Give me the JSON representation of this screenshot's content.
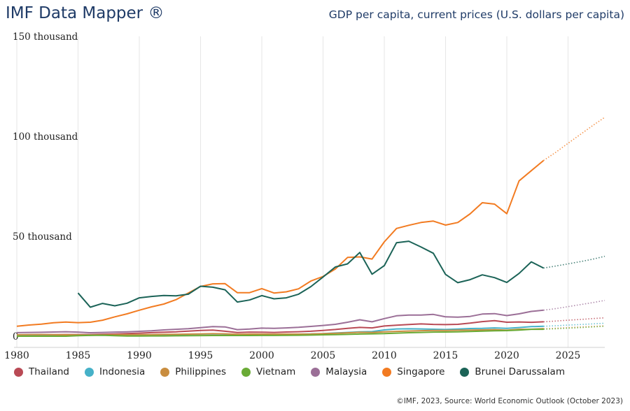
{
  "header": {
    "brand": "IMF Data Mapper ®",
    "subtitle": "GDP per capita, current prices (U.S. dollars per capita)"
  },
  "footer": {
    "credit": "©IMF, 2023, Source: World Economic Outlook (October 2023)"
  },
  "colors": {
    "Thailand": "#b94a55",
    "Indonesia": "#46b1c8",
    "Philippines": "#c98d3f",
    "Vietnam": "#6aab36",
    "Malaysia": "#9b6f97",
    "Singapore": "#f27b21",
    "Brunei Darussalam": "#1b6357"
  },
  "chart_data": {
    "type": "line",
    "title": "GDP per capita, current prices (U.S. dollars per capita)",
    "xlim": [
      1980,
      2028
    ],
    "ylim": [
      0,
      150000
    ],
    "x_ticks": [
      1980,
      1985,
      1990,
      1995,
      2000,
      2005,
      2010,
      2015,
      2020,
      2025
    ],
    "y_ticks": [
      {
        "value": 0,
        "label": "0"
      },
      {
        "value": 50000,
        "label": "50 thousand"
      },
      {
        "value": 100000,
        "label": "100 thousand"
      },
      {
        "value": 150000,
        "label": "150 thousand"
      }
    ],
    "projection_from": 2023,
    "legend_position": "bottom",
    "series": [
      {
        "name": "Thailand",
        "start": 1980,
        "values": [
          700,
          750,
          800,
          800,
          850,
          850,
          850,
          950,
          1100,
          1300,
          1550,
          1800,
          2000,
          2200,
          2550,
          2850,
          3050,
          2500,
          1850,
          2050,
          2000,
          1900,
          2100,
          2250,
          2500,
          2900,
          3350,
          3950,
          4400,
          4150,
          5100,
          5500,
          5850,
          6150,
          5900,
          5800,
          5950,
          6550,
          7300,
          7800,
          7000,
          7150,
          6950,
          7200,
          7600,
          8000,
          8400,
          8800,
          9200
        ]
      },
      {
        "name": "Indonesia",
        "start": 1980,
        "values": [
          550,
          600,
          650,
          600,
          600,
          550,
          550,
          500,
          500,
          550,
          600,
          650,
          700,
          800,
          900,
          1050,
          1150,
          1050,
          500,
          650,
          800,
          780,
          900,
          1050,
          1150,
          1300,
          1600,
          1900,
          2200,
          2300,
          3150,
          3650,
          3700,
          3650,
          3500,
          3350,
          3550,
          3850,
          3900,
          4150,
          3900,
          4350,
          4800,
          4950,
          5250,
          5550,
          5850,
          6150,
          6500
        ]
      },
      {
        "name": "Philippines",
        "start": 1980,
        "values": [
          750,
          800,
          850,
          750,
          700,
          650,
          550,
          600,
          700,
          750,
          800,
          800,
          900,
          950,
          1050,
          1150,
          1250,
          1200,
          950,
          1050,
          1050,
          1000,
          1050,
          1050,
          1100,
          1250,
          1450,
          1700,
          1950,
          1900,
          2200,
          2400,
          2600,
          2750,
          2850,
          2900,
          3000,
          3050,
          3150,
          3300,
          3000,
          3450,
          3500,
          3750,
          4000,
          4300,
          4600,
          4900,
          5200
        ]
      },
      {
        "name": "Vietnam",
        "start": 1980,
        "values": [
          0,
          0,
          0,
          0,
          0,
          250,
          400,
          500,
          250,
          100,
          100,
          150,
          150,
          200,
          250,
          300,
          350,
          350,
          350,
          350,
          400,
          400,
          450,
          500,
          550,
          700,
          800,
          900,
          1100,
          1200,
          1300,
          1550,
          1750,
          1900,
          2050,
          2100,
          2200,
          2350,
          2550,
          2700,
          2800,
          3050,
          3450,
          3450,
          3700,
          4000,
          4300,
          4600,
          4950
        ]
      },
      {
        "name": "Malaysia",
        "start": 1980,
        "values": [
          1800,
          1900,
          1950,
          2100,
          2250,
          2050,
          1750,
          1900,
          2050,
          2200,
          2450,
          2700,
          3150,
          3450,
          3750,
          4300,
          4800,
          4650,
          3300,
          3550,
          4050,
          3900,
          4150,
          4450,
          4900,
          5400,
          5950,
          7000,
          8200,
          7200,
          8800,
          10200,
          10600,
          10600,
          10900,
          9700,
          9500,
          9900,
          11100,
          11300,
          10300,
          11200,
          12400,
          13000,
          13800,
          14800,
          15800,
          16800,
          17900
        ]
      },
      {
        "name": "Singapore",
        "start": 1980,
        "values": [
          5000,
          5600,
          6000,
          6700,
          7100,
          6800,
          7000,
          8000,
          9700,
          11200,
          13000,
          14700,
          16100,
          18300,
          21600,
          24900,
          26200,
          26300,
          21800,
          21800,
          23800,
          21600,
          22200,
          23700,
          27600,
          29900,
          33600,
          39400,
          39700,
          38600,
          47200,
          53900,
          55500,
          56900,
          57600,
          55600,
          56900,
          61200,
          66800,
          66100,
          61300,
          77700,
          82800,
          87900,
          92000,
          96500,
          100900,
          105300,
          109500
        ]
      },
      {
        "name": "Brunei Darussalam",
        "start": 1985,
        "values": [
          21600,
          14500,
          16400,
          15200,
          16500,
          19200,
          19900,
          20400,
          20200,
          21000,
          25000,
          24500,
          23200,
          17100,
          18100,
          20300,
          18700,
          19200,
          21000,
          24800,
          29600,
          34600,
          36200,
          41900,
          31000,
          35300,
          46800,
          47500,
          44600,
          41500,
          30900,
          26800,
          28300,
          30700,
          29300,
          26900,
          31400,
          37200,
          34100,
          35100,
          36200,
          37300,
          38500,
          40000
        ]
      }
    ]
  }
}
